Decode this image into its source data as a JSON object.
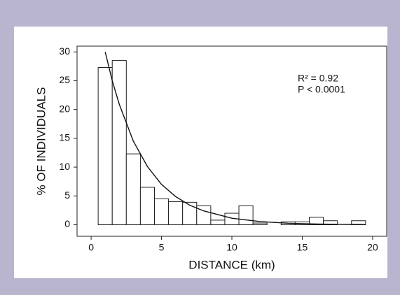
{
  "chart_data": {
    "type": "histogram",
    "xlabel": "DISTANCE (km)",
    "ylabel": "% OF INDIVIDUALS",
    "annotations": [
      "R² = 0.92",
      "P < 0.0001"
    ],
    "bins": [
      0.5,
      1.5,
      2.5,
      3.5,
      4.5,
      5.5,
      6.5,
      7.5,
      8.5,
      9.5,
      10.5,
      11.5,
      12.5,
      13.5,
      14.5,
      15.5,
      16.5,
      17.5,
      18.5,
      19.5
    ],
    "values": [
      27.3,
      28.5,
      12.3,
      6.5,
      4.5,
      4.0,
      3.9,
      3.3,
      0.8,
      2.0,
      3.3,
      0.3,
      0,
      0.5,
      0.5,
      1.3,
      0.7,
      0,
      0.7
    ],
    "color": "#ffffff",
    "curve": {
      "x": [
        1,
        1.5,
        2,
        3,
        4,
        5,
        6,
        7,
        8,
        10,
        12,
        14,
        16,
        18,
        19.5
      ],
      "values": [
        30.0,
        25.0,
        20.9,
        14.5,
        10.1,
        7.0,
        4.9,
        3.4,
        2.4,
        1.13,
        0.55,
        0.27,
        0.13,
        0.06,
        0.04
      ]
    },
    "xlim": [
      -1,
      21
    ],
    "ylim": [
      -2,
      31
    ],
    "xticks": [
      0,
      5,
      10,
      15,
      20
    ],
    "yticks": [
      0,
      5,
      10,
      15,
      20,
      25,
      30
    ]
  }
}
